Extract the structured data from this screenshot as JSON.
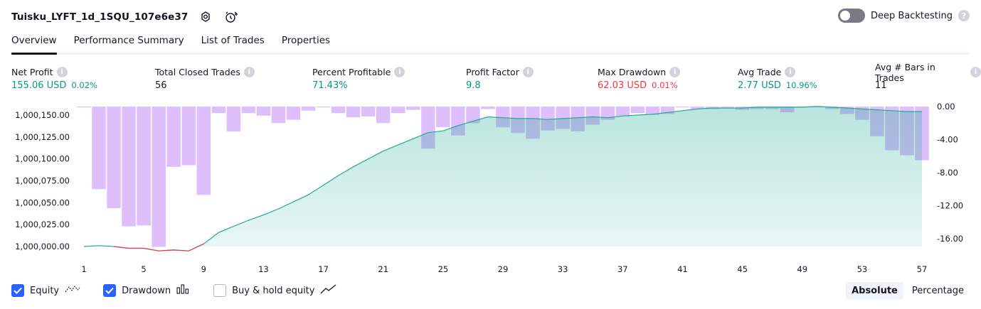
{
  "header": {
    "title": "Tuisku_LYFT_1d_1SQU_107e6e37",
    "deep_backtesting_label": "Deep Backtesting"
  },
  "tabs": [
    "Overview",
    "Performance Summary",
    "List of Trades",
    "Properties"
  ],
  "active_tab": "Overview",
  "stats": {
    "net_profit": {
      "label": "Net Profit",
      "value": "155.06 USD",
      "pct": "0.02%"
    },
    "total_closed_trades": {
      "label": "Total Closed Trades",
      "value": "56"
    },
    "percent_profitable": {
      "label": "Percent Profitable",
      "value": "71.43%"
    },
    "profit_factor": {
      "label": "Profit Factor",
      "value": "9.8"
    },
    "max_drawdown": {
      "label": "Max Drawdown",
      "value": "62.03 USD",
      "pct": "0.01%"
    },
    "avg_trade": {
      "label": "Avg Trade",
      "value": "2.77 USD",
      "pct": "10.96%"
    },
    "avg_bars": {
      "label": "Avg # Bars in Trades",
      "value": "11"
    }
  },
  "colors": {
    "profit": "#089981",
    "loss": "#f23645",
    "equity_line": "#22ab94",
    "drawdown_bar": "#d9b3fb",
    "accent": "#2962ff"
  },
  "chart_data": {
    "type": "area",
    "x_ticks": [
      1,
      5,
      9,
      13,
      17,
      21,
      25,
      29,
      33,
      37,
      41,
      45,
      49,
      53,
      57
    ],
    "left_axis_ticks": [
      "1,000,150.00",
      "1,000,125.00",
      "1,000,100.00",
      "1,000,075.00",
      "1,000,050.00",
      "1,000,025.00",
      "1,000,000.00"
    ],
    "right_axis_ticks": [
      "0.00",
      "-4.00",
      "-8.00",
      "-12.00",
      "-16.00"
    ],
    "left_ylim": [
      1000000,
      1000160
    ],
    "right_ylim": [
      -16,
      0
    ],
    "series": [
      {
        "name": "Equity",
        "axis": "left",
        "x": [
          1,
          2,
          3,
          4,
          5,
          6,
          7,
          8,
          9,
          10,
          11,
          12,
          13,
          14,
          15,
          16,
          17,
          18,
          19,
          20,
          21,
          22,
          23,
          24,
          25,
          26,
          27,
          28,
          29,
          30,
          31,
          32,
          33,
          34,
          35,
          36,
          37,
          38,
          39,
          40,
          41,
          42,
          43,
          44,
          45,
          46,
          47,
          48,
          49,
          50,
          51,
          52,
          53,
          54,
          55,
          56,
          57
        ],
        "values": [
          1000000,
          1000001,
          1000000,
          999998,
          999998,
          999995,
          999996,
          999995,
          1000003,
          1000016,
          1000023,
          1000030,
          1000036,
          1000043,
          1000051,
          1000059,
          1000070,
          1000081,
          1000091,
          1000100,
          1000109,
          1000116,
          1000123,
          1000130,
          1000132,
          1000138,
          1000143,
          1000148,
          1000147,
          1000146,
          1000146,
          1000145,
          1000146,
          1000147,
          1000148,
          1000147,
          1000149,
          1000150,
          1000151,
          1000153,
          1000155,
          1000157,
          1000158,
          1000158,
          1000158,
          1000159,
          1000159,
          1000159,
          1000159,
          1000160,
          1000159,
          1000158,
          1000157,
          1000156,
          1000155,
          1000154,
          1000154
        ]
      },
      {
        "name": "Drawdown",
        "axis": "right",
        "x": [
          1,
          2,
          3,
          4,
          5,
          6,
          7,
          8,
          9,
          10,
          11,
          12,
          13,
          14,
          15,
          16,
          17,
          18,
          19,
          20,
          21,
          22,
          23,
          24,
          25,
          26,
          27,
          28,
          29,
          30,
          31,
          32,
          33,
          34,
          35,
          36,
          37,
          38,
          39,
          40,
          41,
          42,
          43,
          44,
          45,
          46,
          47,
          48,
          49,
          50,
          51,
          52,
          53,
          54,
          55,
          56,
          57
        ],
        "values": [
          -0.1,
          -10,
          -12.3,
          -14.5,
          -14.4,
          -17,
          -7.3,
          -7.1,
          -10.7,
          -0.8,
          -3,
          -0.8,
          -1.1,
          -2,
          -1.6,
          -0.5,
          -0.1,
          -0.8,
          -1.3,
          -1.2,
          -2,
          -0.8,
          -0.4,
          -5.1,
          -2.5,
          -3.5,
          -2,
          -0.3,
          -2.5,
          -3.2,
          -3.9,
          -2.9,
          -2.7,
          -3,
          -2.2,
          -1.6,
          -1.2,
          -0.8,
          -1,
          -0.9,
          -0.1,
          -0.3,
          -0.3,
          -0.2,
          -0.4,
          -0.3,
          -0.3,
          -0.7,
          -0.1,
          -0.1,
          -0.3,
          -0.9,
          -1.6,
          -3.6,
          -5.3,
          -5.9,
          -6.5
        ]
      }
    ]
  },
  "legend": {
    "equity": {
      "label": "Equity",
      "checked": true
    },
    "drawdown": {
      "label": "Drawdown",
      "checked": true
    },
    "buy_hold": {
      "label": "Buy & hold equity",
      "checked": false
    }
  },
  "view_toggle": {
    "options": [
      "Absolute",
      "Percentage"
    ],
    "selected": "Absolute"
  }
}
